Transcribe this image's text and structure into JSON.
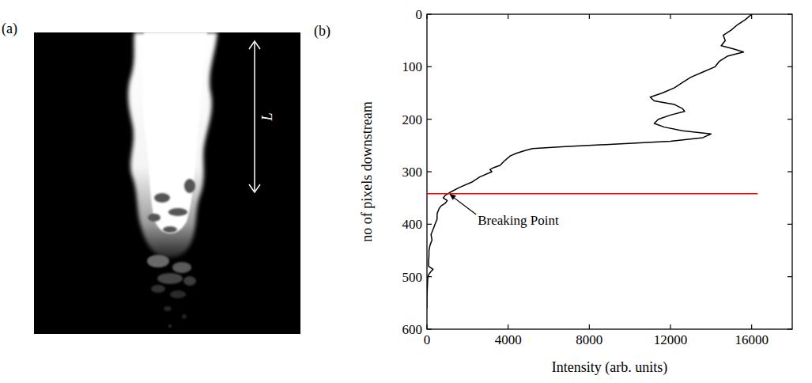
{
  "panel_a": {
    "label": "(a)",
    "length_label": "L"
  },
  "chart_data": {
    "type": "line",
    "panel_label": "(b)",
    "orientation": "horizontal",
    "xlabel": "Intensity (arb. units)",
    "ylabel": "no of pixels downstream",
    "xlim": [
      0,
      18000
    ],
    "xticks": [
      0,
      4000,
      8000,
      12000,
      16000
    ],
    "ylim": [
      0,
      600
    ],
    "yticks": [
      0,
      100,
      200,
      300,
      400,
      500,
      600
    ],
    "color": "#000000",
    "x": [
      0,
      10,
      20,
      30,
      40,
      50,
      60,
      66,
      72,
      80,
      90,
      100,
      110,
      120,
      130,
      140,
      150,
      158,
      165,
      172,
      180,
      185,
      192,
      200,
      208,
      215,
      222,
      228,
      235,
      242,
      248,
      252,
      256,
      260,
      265,
      270,
      280,
      288,
      292,
      296,
      300,
      310,
      320,
      330,
      338,
      345,
      350,
      355,
      360,
      365,
      370,
      380,
      390,
      400,
      410,
      420,
      430,
      440,
      450,
      460,
      470,
      480,
      486,
      490,
      495,
      500,
      510,
      520,
      530,
      540,
      550,
      560
    ],
    "values": [
      16000,
      15700,
      15300,
      15000,
      14600,
      14700,
      14500,
      15100,
      15600,
      14800,
      14400,
      14200,
      13600,
      13000,
      12600,
      12200,
      11600,
      11000,
      11200,
      12200,
      12600,
      12700,
      12000,
      11400,
      11200,
      11700,
      12600,
      14000,
      13600,
      12000,
      9000,
      6800,
      5200,
      4800,
      4400,
      4100,
      3800,
      3600,
      3300,
      3100,
      3200,
      2600,
      2200,
      1600,
      1200,
      900,
      800,
      1000,
      900,
      700,
      600,
      500,
      500,
      400,
      300,
      200,
      250,
      150,
      100,
      100,
      80,
      80,
      300,
      200,
      100,
      50,
      30,
      20,
      10,
      0,
      0,
      0
    ],
    "reference_line": {
      "y": 342,
      "xlim": [
        0,
        16300
      ],
      "color": "#ff0000"
    },
    "annotations": [
      {
        "text": "Breaking Point",
        "x": 2500,
        "y": 392,
        "arrow_x": 1100,
        "arrow_y": 342
      }
    ]
  }
}
